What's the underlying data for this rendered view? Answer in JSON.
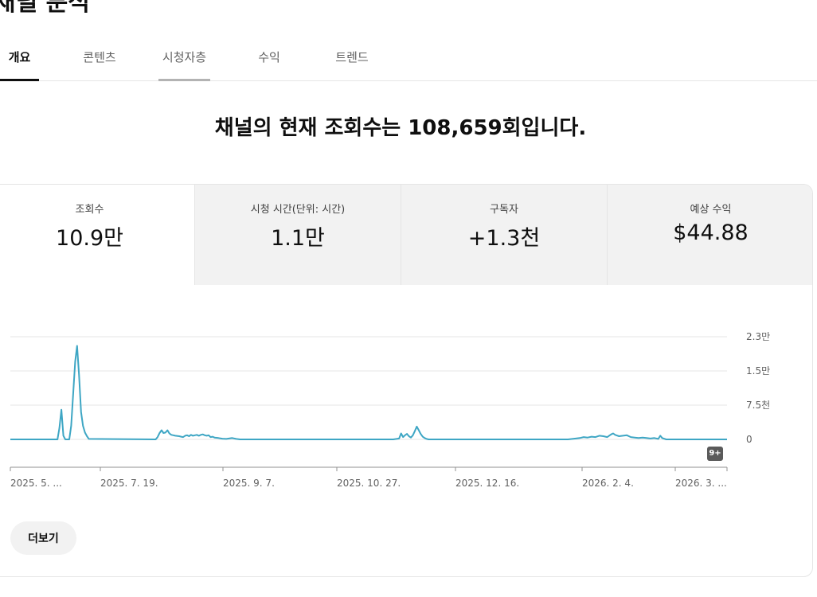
{
  "page": {
    "title": "채널 분석"
  },
  "tabs": [
    {
      "label": "개요",
      "active": true
    },
    {
      "label": "콘텐츠",
      "active": false
    },
    {
      "label": "시청자층",
      "active": false
    },
    {
      "label": "수익",
      "active": false
    },
    {
      "label": "트렌드",
      "active": false
    }
  ],
  "headline": "채널의 현재 조회수는 108,659회입니다.",
  "metrics": [
    {
      "label": "조회수",
      "value": "10.9만"
    },
    {
      "label": "시청 시간(단위: 시간)",
      "value": "1.1만"
    },
    {
      "label": "구독자",
      "value": "+1.3천"
    },
    {
      "label": "예상 수익",
      "value": "$44.88"
    }
  ],
  "badge": "9+",
  "more_label": "더보기",
  "colors": {
    "line": "#3ea6c4",
    "active_tab": "#0f0f0f",
    "metric_bg": "#f2f2f2"
  },
  "chart_data": {
    "type": "line",
    "series": [
      {
        "values": [
          [
            0,
            0
          ],
          [
            24,
            0
          ],
          [
            25,
            2500
          ],
          [
            26,
            6500
          ],
          [
            27,
            800
          ],
          [
            28,
            0
          ],
          [
            29,
            0
          ],
          [
            30,
            0
          ],
          [
            31,
            3000
          ],
          [
            32,
            10000
          ],
          [
            33,
            17000
          ],
          [
            34,
            20500
          ],
          [
            35,
            14000
          ],
          [
            36,
            6000
          ],
          [
            37,
            3000
          ],
          [
            38,
            1500
          ],
          [
            39,
            700
          ],
          [
            40,
            100
          ],
          [
            74,
            0
          ],
          [
            75,
            500
          ],
          [
            76,
            1400
          ],
          [
            77,
            2000
          ],
          [
            78,
            1400
          ],
          [
            79,
            1500
          ],
          [
            80,
            2000
          ],
          [
            81,
            1300
          ],
          [
            82,
            1000
          ],
          [
            83,
            900
          ],
          [
            84,
            800
          ],
          [
            86,
            700
          ],
          [
            87,
            600
          ],
          [
            88,
            500
          ],
          [
            89,
            800
          ],
          [
            90,
            900
          ],
          [
            91,
            700
          ],
          [
            92,
            1000
          ],
          [
            93,
            800
          ],
          [
            94,
            900
          ],
          [
            95,
            1000
          ],
          [
            96,
            800
          ],
          [
            97,
            1000
          ],
          [
            98,
            1100
          ],
          [
            99,
            900
          ],
          [
            100,
            800
          ],
          [
            101,
            900
          ],
          [
            102,
            500
          ],
          [
            103,
            600
          ],
          [
            104,
            400
          ],
          [
            106,
            300
          ],
          [
            108,
            150
          ],
          [
            110,
            100
          ],
          [
            113,
            300
          ],
          [
            115,
            100
          ],
          [
            117,
            0
          ],
          [
            195,
            0
          ],
          [
            198,
            200
          ],
          [
            199,
            1300
          ],
          [
            200,
            500
          ],
          [
            201,
            900
          ],
          [
            202,
            1200
          ],
          [
            203,
            700
          ],
          [
            204,
            400
          ],
          [
            205,
            900
          ],
          [
            206,
            1800
          ],
          [
            207,
            2800
          ],
          [
            208,
            2000
          ],
          [
            209,
            1200
          ],
          [
            210,
            600
          ],
          [
            211,
            300
          ],
          [
            212,
            100
          ],
          [
            213,
            0
          ],
          [
            284,
            0
          ],
          [
            288,
            200
          ],
          [
            290,
            300
          ],
          [
            292,
            500
          ],
          [
            294,
            400
          ],
          [
            296,
            600
          ],
          [
            298,
            500
          ],
          [
            300,
            800
          ],
          [
            302,
            700
          ],
          [
            304,
            500
          ],
          [
            306,
            1100
          ],
          [
            307,
            1300
          ],
          [
            308,
            1000
          ],
          [
            310,
            700
          ],
          [
            312,
            800
          ],
          [
            314,
            900
          ],
          [
            316,
            500
          ],
          [
            318,
            400
          ],
          [
            320,
            300
          ],
          [
            322,
            400
          ],
          [
            324,
            300
          ],
          [
            326,
            200
          ],
          [
            328,
            300
          ],
          [
            330,
            100
          ],
          [
            331,
            800
          ],
          [
            332,
            300
          ],
          [
            334,
            0
          ],
          [
            365,
            0
          ]
        ]
      }
    ],
    "x_ticks": [
      "2025. 5. ...",
      "2025. 7. 19.",
      "2025. 9. 7.",
      "2025. 10. 27.",
      "2025. 12. 16.",
      "2026. 2. 4.",
      "2026. 3. ..."
    ],
    "y_ticks": [
      "2.3만",
      "1.5만",
      "7.5천",
      "0"
    ],
    "ylim": [
      0,
      22500
    ],
    "grid": true,
    "xlabel": "",
    "ylabel": ""
  }
}
